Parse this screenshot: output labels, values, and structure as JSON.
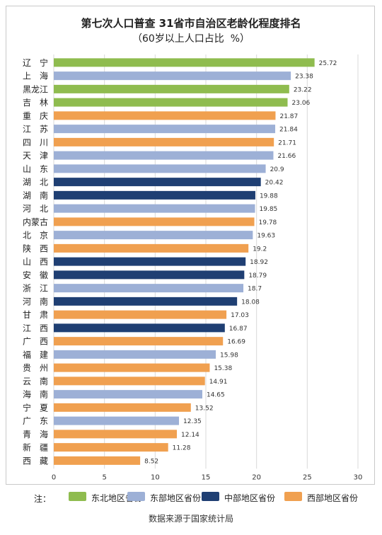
{
  "chart_data": {
    "type": "bar",
    "orientation": "horizontal",
    "title": "第七次人口普查 31省市自治区老龄化程度排名",
    "subtitle": "（60岁以上人口占比  %）",
    "xlim": [
      0,
      30
    ],
    "x_ticks": [
      0,
      5,
      10,
      15,
      20,
      25,
      30
    ],
    "grid": "vertical",
    "legend_placement": "bottom",
    "colors": {
      "northeast": "#8fbc4f",
      "east": "#9db0d6",
      "central": "#1f3f73",
      "west": "#f0a050"
    },
    "groups": [
      {
        "key": "northeast",
        "name": "东北地区省份"
      },
      {
        "key": "east",
        "name": "东部地区省份"
      },
      {
        "key": "central",
        "name": "中部地区省份"
      },
      {
        "key": "west",
        "name": "西部地区省份"
      }
    ],
    "bars": [
      {
        "label": "辽　宁",
        "value": 25.72,
        "group": "northeast"
      },
      {
        "label": "上　海",
        "value": 23.38,
        "group": "east"
      },
      {
        "label": "黑龙江",
        "value": 23.22,
        "group": "northeast"
      },
      {
        "label": "吉　林",
        "value": 23.06,
        "group": "northeast"
      },
      {
        "label": "重　庆",
        "value": 21.87,
        "group": "west"
      },
      {
        "label": "江　苏",
        "value": 21.84,
        "group": "east"
      },
      {
        "label": "四　川",
        "value": 21.71,
        "group": "west"
      },
      {
        "label": "天　津",
        "value": 21.66,
        "group": "east"
      },
      {
        "label": "山　东",
        "value": 20.9,
        "group": "east"
      },
      {
        "label": "湖　北",
        "value": 20.42,
        "group": "central"
      },
      {
        "label": "湖　南",
        "value": 19.88,
        "group": "central"
      },
      {
        "label": "河　北",
        "value": 19.85,
        "group": "east"
      },
      {
        "label": "内蒙古",
        "value": 19.78,
        "group": "west"
      },
      {
        "label": "北　京",
        "value": 19.63,
        "group": "east"
      },
      {
        "label": "陕　西",
        "value": 19.2,
        "group": "west"
      },
      {
        "label": "山　西",
        "value": 18.92,
        "group": "central"
      },
      {
        "label": "安　徽",
        "value": 18.79,
        "group": "central"
      },
      {
        "label": "浙　江",
        "value": 18.7,
        "group": "east"
      },
      {
        "label": "河　南",
        "value": 18.08,
        "group": "central"
      },
      {
        "label": "甘　肃",
        "value": 17.03,
        "group": "west"
      },
      {
        "label": "江　西",
        "value": 16.87,
        "group": "central"
      },
      {
        "label": "广　西",
        "value": 16.69,
        "group": "west"
      },
      {
        "label": "福　建",
        "value": 15.98,
        "group": "east"
      },
      {
        "label": "贵　州",
        "value": 15.38,
        "group": "west"
      },
      {
        "label": "云　南",
        "value": 14.91,
        "group": "west"
      },
      {
        "label": "海　南",
        "value": 14.65,
        "group": "east"
      },
      {
        "label": "宁　夏",
        "value": 13.52,
        "group": "west"
      },
      {
        "label": "广　东",
        "value": 12.35,
        "group": "east"
      },
      {
        "label": "青　海",
        "value": 12.14,
        "group": "west"
      },
      {
        "label": "新　疆",
        "value": 11.28,
        "group": "west"
      },
      {
        "label": "西　藏",
        "value": 8.52,
        "group": "west"
      }
    ]
  },
  "legend": {
    "note": "注："
  },
  "source": "数据来源于国家统计局"
}
